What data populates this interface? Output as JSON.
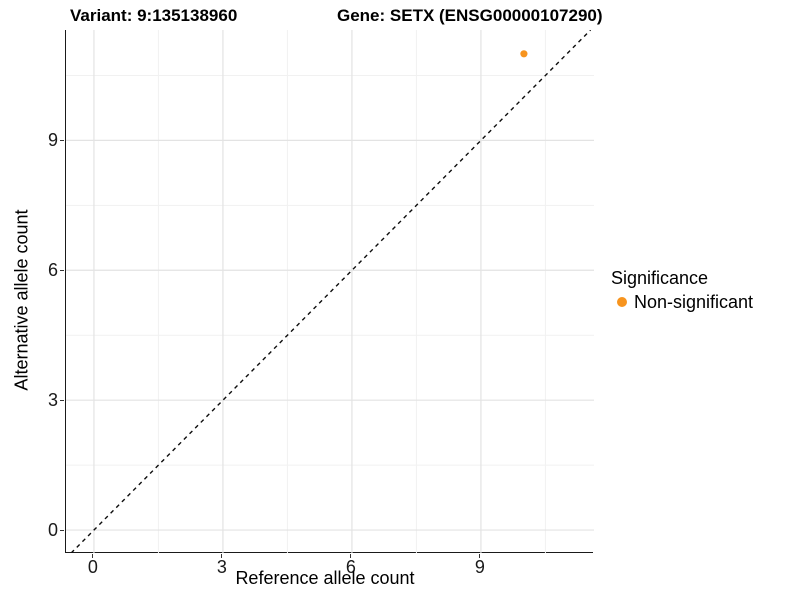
{
  "header": {
    "title_variant": "Variant: 9:135138960",
    "title_gene": "Gene: SETX (ENSG00000107290)"
  },
  "chart_data": {
    "type": "scatter",
    "title_left": "Variant: 9:135138960",
    "title_right": "Gene: SETX (ENSG00000107290)",
    "xlabel": "Reference allele count",
    "ylabel": "Alternative allele count",
    "xlim": [
      -0.65,
      11.63
    ],
    "ylim": [
      -0.53,
      11.55
    ],
    "x_ticks": [
      0,
      3,
      6,
      9
    ],
    "y_ticks": [
      0,
      3,
      6,
      9
    ],
    "x_minor_breaks": [
      1.5,
      4.5,
      7.5,
      10.5
    ],
    "y_minor_breaks": [
      1.5,
      4.5,
      7.5,
      10.5
    ],
    "grid": true,
    "points": [
      {
        "x": 10,
        "y": 11,
        "series": "Non-significant"
      }
    ],
    "abline": {
      "slope": 1,
      "intercept": 0,
      "style": "dashed"
    },
    "legend": {
      "title": "Significance",
      "position": "right",
      "items": [
        {
          "label": "Non-significant",
          "color": "#F7941E"
        }
      ]
    }
  },
  "colors": {
    "grid_major": "#e3e3e3",
    "grid_minor": "#f1f1f1",
    "axis_line": "#1a1a1a",
    "dashed_line": "#0d0d0d",
    "point": "#F7941E"
  }
}
